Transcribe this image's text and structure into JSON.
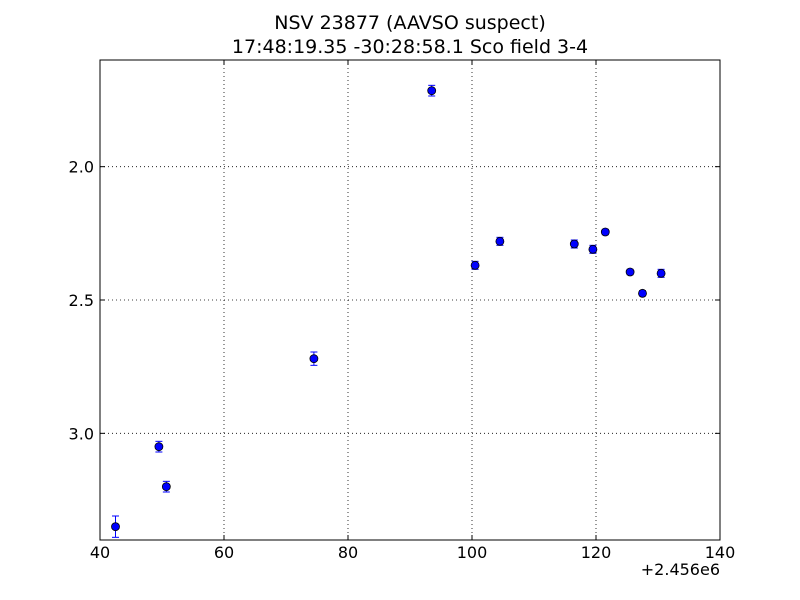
{
  "chart_data": {
    "type": "scatter",
    "title": "NSV 23877 (AAVSO suspect)",
    "subtitle": "17:48:19.35 -30:28:58.1 Sco field 3-4",
    "xlabel": "",
    "ylabel": "",
    "x_offset_label": "+2.456e6",
    "xlim": [
      40,
      140
    ],
    "ylim": [
      3.4,
      1.6
    ],
    "y_inverted": true,
    "grid": true,
    "x_tick_labels": [
      "40",
      "60",
      "80",
      "100",
      "120",
      "140"
    ],
    "y_tick_labels": [
      "2.0",
      "2.5",
      "3.0"
    ],
    "series": [
      {
        "color": "#0000ff",
        "marker": "circle",
        "points": [
          {
            "x": 42.5,
            "y": 3.35,
            "err": 0.04
          },
          {
            "x": 49.5,
            "y": 3.05,
            "err": 0.02
          },
          {
            "x": 50.7,
            "y": 3.2,
            "err": 0.02
          },
          {
            "x": 74.5,
            "y": 2.72,
            "err": 0.025
          },
          {
            "x": 93.5,
            "y": 1.715,
            "err": 0.02
          },
          {
            "x": 100.5,
            "y": 2.37,
            "err": 0.015
          },
          {
            "x": 104.5,
            "y": 2.28,
            "err": 0.015
          },
          {
            "x": 116.5,
            "y": 2.29,
            "err": 0.015
          },
          {
            "x": 119.5,
            "y": 2.31,
            "err": 0.015
          },
          {
            "x": 121.5,
            "y": 2.245,
            "err": 0.01
          },
          {
            "x": 125.5,
            "y": 2.395,
            "err": 0.01
          },
          {
            "x": 127.5,
            "y": 2.475,
            "err": 0.01
          },
          {
            "x": 130.5,
            "y": 2.4,
            "err": 0.015
          }
        ]
      }
    ]
  }
}
